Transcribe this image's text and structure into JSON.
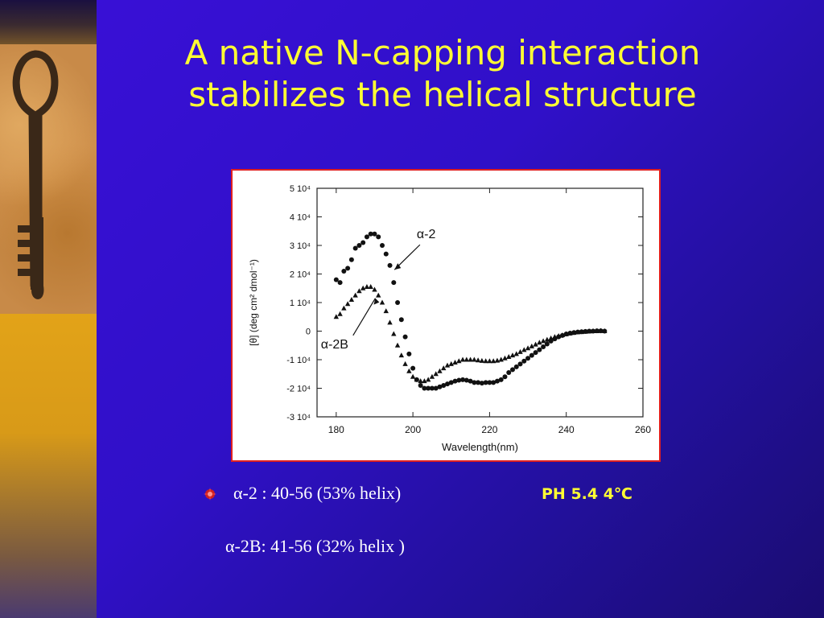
{
  "slide": {
    "title_line1": "A native N-capping interaction",
    "title_line2": "stabilizes the helical structure",
    "bullet1": "α-2  : 40-56 (53% helix)",
    "condition": "PH 5.4 4℃",
    "bullet2": "α-2B: 41-56 (32% helix )",
    "sidebar_icon": "key-icon",
    "bullet_icon": "red-star-bullet-icon",
    "colors": {
      "title": "#ffff33",
      "text": "#ffffff",
      "frame": "#e02020",
      "background": "#3010c8"
    }
  },
  "chart_data": {
    "type": "scatter",
    "xlabel": "Wavelength(nm)",
    "ylabel": "[θ] (deg cm² dmol⁻¹)",
    "xlim": [
      175,
      260
    ],
    "ylim": [
      -30000,
      50000
    ],
    "x_ticks": [
      180,
      200,
      220,
      240,
      260
    ],
    "x_tick_labels": [
      "180",
      "200",
      "220",
      "240",
      "260"
    ],
    "y_ticks": [
      50000,
      40000,
      30000,
      20000,
      10000,
      0,
      -10000,
      -20000,
      -30000
    ],
    "y_tick_labels": [
      "5 10⁴",
      "4 10⁴",
      "3 10⁴",
      "2 10⁴",
      "1 10⁴",
      "0",
      "-1 10⁴",
      "-2 10⁴",
      "-3 10⁴"
    ],
    "grid": false,
    "series": [
      {
        "name": "α-2",
        "marker": "circle",
        "points": [
          [
            180,
            18000
          ],
          [
            181,
            17000
          ],
          [
            182,
            21000
          ],
          [
            183,
            22000
          ],
          [
            184,
            25000
          ],
          [
            185,
            29000
          ],
          [
            186,
            30000
          ],
          [
            187,
            31000
          ],
          [
            188,
            33000
          ],
          [
            189,
            34000
          ],
          [
            190,
            34000
          ],
          [
            191,
            33000
          ],
          [
            192,
            30000
          ],
          [
            193,
            27000
          ],
          [
            194,
            23000
          ],
          [
            195,
            17000
          ],
          [
            196,
            10000
          ],
          [
            197,
            4000
          ],
          [
            198,
            -2000
          ],
          [
            199,
            -8000
          ],
          [
            200,
            -13000
          ],
          [
            201,
            -17000
          ],
          [
            202,
            -19000
          ],
          [
            203,
            -20000
          ],
          [
            204,
            -20000
          ],
          [
            205,
            -20000
          ],
          [
            206,
            -20000
          ],
          [
            207,
            -19500
          ],
          [
            208,
            -19000
          ],
          [
            209,
            -18500
          ],
          [
            210,
            -18000
          ],
          [
            211,
            -17500
          ],
          [
            212,
            -17200
          ],
          [
            213,
            -17000
          ],
          [
            214,
            -17200
          ],
          [
            215,
            -17500
          ],
          [
            216,
            -18000
          ],
          [
            217,
            -18000
          ],
          [
            218,
            -18200
          ],
          [
            219,
            -18000
          ],
          [
            220,
            -18000
          ],
          [
            221,
            -18000
          ],
          [
            222,
            -17500
          ],
          [
            223,
            -17000
          ],
          [
            224,
            -16000
          ],
          [
            225,
            -14500
          ],
          [
            226,
            -13500
          ],
          [
            227,
            -12500
          ],
          [
            228,
            -11500
          ],
          [
            229,
            -10500
          ],
          [
            230,
            -9500
          ],
          [
            231,
            -8500
          ],
          [
            232,
            -7500
          ],
          [
            233,
            -6500
          ],
          [
            234,
            -5500
          ],
          [
            235,
            -4500
          ],
          [
            236,
            -3500
          ],
          [
            237,
            -2700
          ],
          [
            238,
            -2000
          ],
          [
            239,
            -1500
          ],
          [
            240,
            -1000
          ],
          [
            241,
            -700
          ],
          [
            242,
            -500
          ],
          [
            243,
            -300
          ],
          [
            244,
            -200
          ],
          [
            245,
            -100
          ],
          [
            246,
            0
          ],
          [
            247,
            0
          ],
          [
            248,
            100
          ],
          [
            249,
            100
          ],
          [
            250,
            0
          ]
        ]
      },
      {
        "name": "α-2B",
        "marker": "triangle",
        "points": [
          [
            180,
            5000
          ],
          [
            181,
            6000
          ],
          [
            182,
            8000
          ],
          [
            183,
            9500
          ],
          [
            184,
            11000
          ],
          [
            185,
            12500
          ],
          [
            186,
            14000
          ],
          [
            187,
            15000
          ],
          [
            188,
            15500
          ],
          [
            189,
            15500
          ],
          [
            190,
            14500
          ],
          [
            191,
            12500
          ],
          [
            192,
            10000
          ],
          [
            193,
            7000
          ],
          [
            194,
            3000
          ],
          [
            195,
            -1000
          ],
          [
            196,
            -5000
          ],
          [
            197,
            -8500
          ],
          [
            198,
            -11500
          ],
          [
            199,
            -14000
          ],
          [
            200,
            -16000
          ],
          [
            201,
            -17000
          ],
          [
            202,
            -17500
          ],
          [
            203,
            -17500
          ],
          [
            204,
            -17000
          ],
          [
            205,
            -16000
          ],
          [
            206,
            -15000
          ],
          [
            207,
            -14000
          ],
          [
            208,
            -13000
          ],
          [
            209,
            -12000
          ],
          [
            210,
            -11500
          ],
          [
            211,
            -11000
          ],
          [
            212,
            -10500
          ],
          [
            213,
            -10000
          ],
          [
            214,
            -10000
          ],
          [
            215,
            -10000
          ],
          [
            216,
            -10000
          ],
          [
            217,
            -10200
          ],
          [
            218,
            -10400
          ],
          [
            219,
            -10500
          ],
          [
            220,
            -10500
          ],
          [
            221,
            -10500
          ],
          [
            222,
            -10300
          ],
          [
            223,
            -10000
          ],
          [
            224,
            -9500
          ],
          [
            225,
            -9000
          ],
          [
            226,
            -8500
          ],
          [
            227,
            -8000
          ],
          [
            228,
            -7300
          ],
          [
            229,
            -6600
          ],
          [
            230,
            -6000
          ],
          [
            231,
            -5300
          ],
          [
            232,
            -4700
          ],
          [
            233,
            -4000
          ],
          [
            234,
            -3500
          ],
          [
            235,
            -3000
          ],
          [
            236,
            -2500
          ],
          [
            237,
            -2000
          ],
          [
            238,
            -1700
          ],
          [
            239,
            -1400
          ],
          [
            240,
            -1100
          ],
          [
            241,
            -800
          ],
          [
            242,
            -600
          ],
          [
            243,
            -400
          ],
          [
            244,
            -300
          ],
          [
            245,
            -200
          ],
          [
            246,
            -100
          ],
          [
            247,
            0
          ],
          [
            248,
            0
          ],
          [
            249,
            100
          ],
          [
            250,
            0
          ]
        ]
      }
    ],
    "annotations": [
      {
        "text": "α-2",
        "series": "α-2"
      },
      {
        "text": "α-2B",
        "series": "α-2B"
      }
    ]
  }
}
